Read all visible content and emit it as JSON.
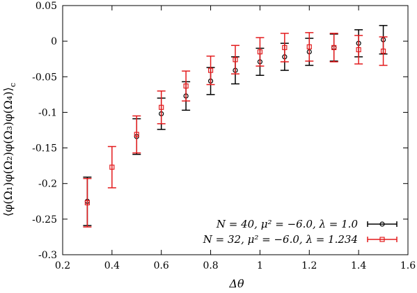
{
  "chart_data": {
    "type": "scatter",
    "title": "",
    "xlabel": "Δθ",
    "ylabel": "⟨φ(Ω₁)φ(Ω₂)φ(Ω₃)φ(Ω₄)⟩",
    "ylabel_subscript": "c",
    "xlim": [
      0.2,
      1.6
    ],
    "ylim": [
      -0.3,
      0.05
    ],
    "xticks": [
      0.2,
      0.4,
      0.6,
      0.8,
      1,
      1.2,
      1.4,
      1.6
    ],
    "xtick_labels": [
      "0.2",
      "0.4",
      "0.6",
      "0.8",
      "1",
      "1.2",
      "1.4",
      "1.6"
    ],
    "yticks": [
      -0.3,
      -0.25,
      -0.2,
      -0.15,
      -0.1,
      -0.05,
      0,
      0.05
    ],
    "ytick_labels": [
      "-0.3",
      "-0.25",
      "-0.2",
      "-0.15",
      "-0.1",
      "-0.05",
      "0",
      "0.05"
    ],
    "grid": false,
    "legend_position": "bottom-right",
    "series": [
      {
        "name": "N = 40, μ² = −6.0, λ = 1.0",
        "color": "#000000",
        "marker": "circle",
        "x": [
          0.3,
          0.5,
          0.6,
          0.7,
          0.8,
          0.9,
          1.0,
          1.1,
          1.2,
          1.3,
          1.4,
          1.5
        ],
        "y": [
          -0.225,
          -0.134,
          -0.102,
          -0.077,
          -0.056,
          -0.041,
          -0.029,
          -0.022,
          -0.015,
          -0.009,
          -0.003,
          0.002
        ],
        "yerr": [
          0.034,
          0.025,
          0.022,
          0.02,
          0.019,
          0.019,
          0.019,
          0.019,
          0.019,
          0.019,
          0.019,
          0.02
        ]
      },
      {
        "name": "N = 32, μ² = −6.0, λ = 1.234",
        "color": "#e31a1c",
        "marker": "square",
        "x": [
          0.3,
          0.4,
          0.5,
          0.6,
          0.7,
          0.8,
          0.9,
          1.0,
          1.1,
          1.2,
          1.3,
          1.4,
          1.5
        ],
        "y": [
          -0.227,
          -0.177,
          -0.131,
          -0.093,
          -0.063,
          -0.041,
          -0.026,
          -0.015,
          -0.009,
          -0.008,
          -0.009,
          -0.012,
          -0.014
        ],
        "yerr": [
          0.034,
          0.029,
          0.026,
          0.023,
          0.021,
          0.02,
          0.02,
          0.02,
          0.02,
          0.02,
          0.02,
          0.02,
          0.02
        ]
      }
    ]
  }
}
